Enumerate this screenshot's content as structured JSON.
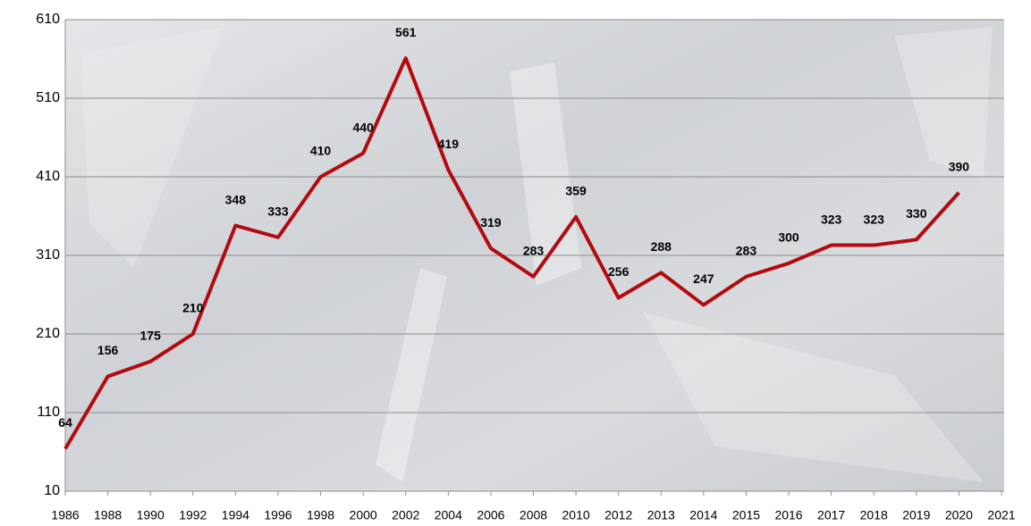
{
  "chart_data": {
    "type": "line",
    "categories": [
      "1986",
      "1988",
      "1990",
      "1992",
      "1994",
      "1996",
      "1998",
      "2000",
      "2002",
      "2004",
      "2006",
      "2008",
      "2010",
      "2012",
      "2013",
      "2014",
      "2015",
      "2016",
      "2017",
      "2018",
      "2019",
      "2020",
      "2021"
    ],
    "values": [
      64,
      156,
      175,
      210,
      348,
      333,
      410,
      440,
      561,
      419,
      319,
      283,
      359,
      256,
      288,
      247,
      283,
      300,
      323,
      323,
      330,
      390,
      null
    ],
    "color": "#b30a0f",
    "ylim": [
      10,
      610
    ],
    "yticks": [
      10,
      110,
      210,
      310,
      410,
      510,
      610
    ],
    "grid": true
  }
}
